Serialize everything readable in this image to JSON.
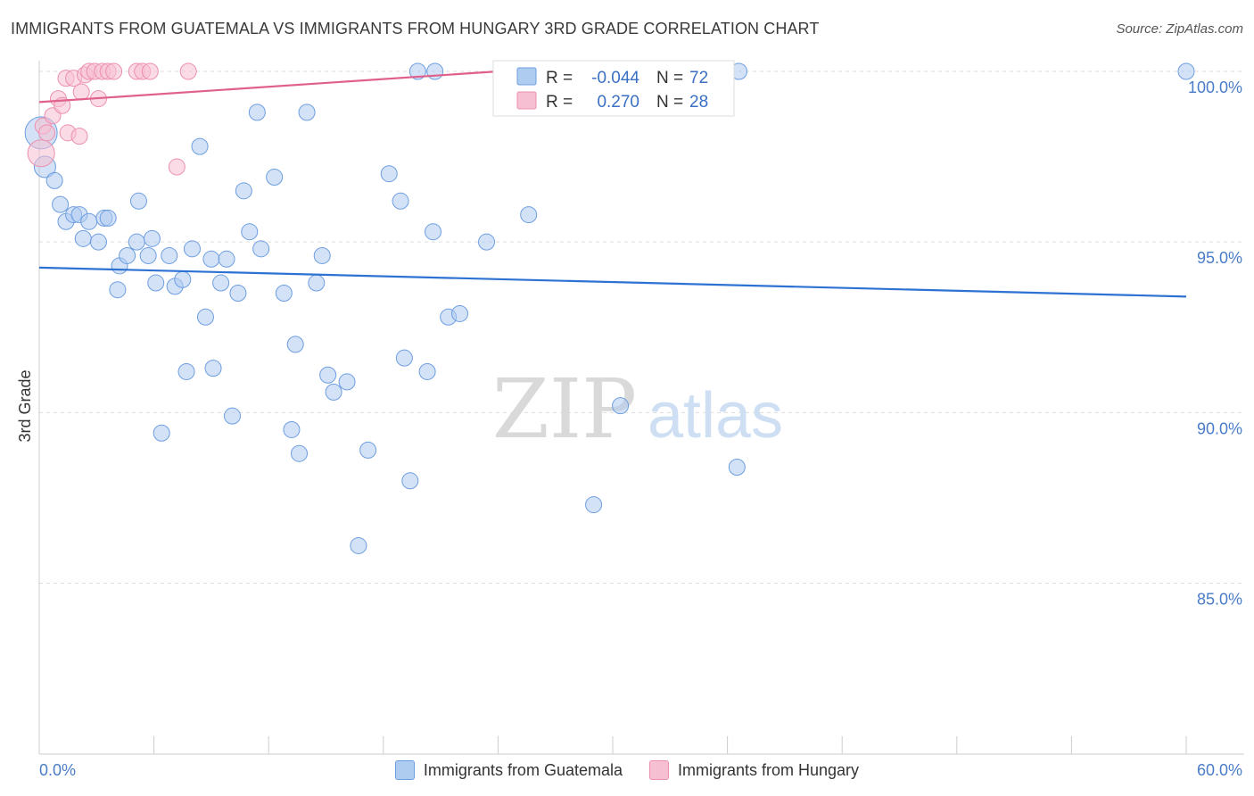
{
  "title": "IMMIGRANTS FROM GUATEMALA VS IMMIGRANTS FROM HUNGARY 3RD GRADE CORRELATION CHART",
  "source": "Source: ZipAtlas.com",
  "watermark": {
    "zip": "ZIP",
    "atlas": "atlas"
  },
  "colors": {
    "guatemala_fill": "#aecbf0",
    "guatemala_stroke": "#6d9ee0",
    "guatemala_line": "#2d72d2",
    "hungary_fill": "#f7c0d2",
    "hungary_stroke": "#ec8fae",
    "hungary_line": "#e0608c",
    "tick": "#4a7cc7",
    "grid": "#dddddd"
  },
  "legend": {
    "rows": [
      {
        "r_label": "R =",
        "r_value": "-0.044",
        "n_label": "N =",
        "n_value": "72"
      },
      {
        "r_label": "R =",
        "r_value": "0.270",
        "n_label": "N =",
        "n_value": "28"
      }
    ]
  },
  "chart_data": {
    "type": "scatter",
    "title": "IMMIGRANTS FROM GUATEMALA VS IMMIGRANTS FROM HUNGARY 3RD GRADE CORRELATION CHART",
    "xlabel": "",
    "ylabel": "3rd Grade",
    "xlim": [
      0,
      60
    ],
    "ylim": [
      80.5,
      100.5
    ],
    "x_tick_labels": [
      {
        "value": 0,
        "label": "0.0%"
      },
      {
        "value": 60,
        "label": "60.0%"
      }
    ],
    "y_tick_labels": [
      {
        "value": 100,
        "label": "100.0%"
      },
      {
        "value": 95,
        "label": "95.0%"
      },
      {
        "value": 90,
        "label": "90.0%"
      },
      {
        "value": 85,
        "label": "85.0%"
      }
    ],
    "x_minor_ticks": [
      6,
      12,
      18,
      24,
      30,
      36,
      42,
      48,
      54,
      60
    ],
    "grid": true,
    "legend_position": "top-center",
    "series": [
      {
        "name": "Immigrants from Guatemala",
        "r": -0.044,
        "n": 72,
        "trend": {
          "x": [
            0,
            60
          ],
          "y": [
            94.25,
            93.4
          ]
        },
        "points": [
          [
            0.1,
            98.2,
            18
          ],
          [
            0.3,
            97.2,
            12
          ],
          [
            0.8,
            96.8,
            9
          ],
          [
            1.1,
            96.1,
            9
          ],
          [
            1.4,
            95.6,
            9
          ],
          [
            1.8,
            95.8,
            9
          ],
          [
            2.1,
            95.8,
            9
          ],
          [
            2.3,
            95.1,
            9
          ],
          [
            2.6,
            95.6,
            9
          ],
          [
            3.1,
            95.0,
            9
          ],
          [
            3.4,
            95.7,
            9
          ],
          [
            3.6,
            95.7,
            9
          ],
          [
            4.2,
            94.3,
            9
          ],
          [
            4.6,
            94.6,
            9
          ],
          [
            4.1,
            93.6,
            9
          ],
          [
            5.1,
            95.0,
            9
          ],
          [
            5.2,
            96.2,
            9
          ],
          [
            5.7,
            94.6,
            9
          ],
          [
            5.9,
            95.1,
            9
          ],
          [
            6.1,
            93.8,
            9
          ],
          [
            6.8,
            94.6,
            9
          ],
          [
            7.1,
            93.7,
            9
          ],
          [
            7.5,
            93.9,
            9
          ],
          [
            8.0,
            94.8,
            9
          ],
          [
            8.4,
            97.8,
            9
          ],
          [
            8.7,
            92.8,
            9
          ],
          [
            9.0,
            94.5,
            9
          ],
          [
            9.5,
            93.8,
            9
          ],
          [
            9.8,
            94.5,
            9
          ],
          [
            10.4,
            93.5,
            9
          ],
          [
            10.7,
            96.5,
            9
          ],
          [
            11.0,
            95.3,
            9
          ],
          [
            11.6,
            94.8,
            9
          ],
          [
            11.4,
            98.8,
            9
          ],
          [
            12.3,
            96.9,
            9
          ],
          [
            12.8,
            93.5,
            9
          ],
          [
            13.4,
            92.0,
            9
          ],
          [
            14.0,
            98.8,
            9
          ],
          [
            14.5,
            93.8,
            9
          ],
          [
            14.8,
            94.6,
            9
          ],
          [
            15.1,
            91.1,
            9
          ],
          [
            15.4,
            90.6,
            9
          ],
          [
            16.1,
            90.9,
            9
          ],
          [
            7.7,
            91.2,
            9
          ],
          [
            9.1,
            91.3,
            9
          ],
          [
            10.1,
            89.9,
            9
          ],
          [
            6.4,
            89.4,
            9
          ],
          [
            13.2,
            89.5,
            9
          ],
          [
            13.6,
            88.8,
            9
          ],
          [
            17.2,
            88.9,
            9
          ],
          [
            16.7,
            86.1,
            9
          ],
          [
            18.3,
            97.0,
            9
          ],
          [
            18.9,
            96.2,
            9
          ],
          [
            19.1,
            91.6,
            9
          ],
          [
            19.8,
            100.0,
            9
          ],
          [
            20.3,
            91.2,
            9
          ],
          [
            20.7,
            100.0,
            9
          ],
          [
            20.6,
            95.3,
            9
          ],
          [
            21.4,
            92.8,
            9
          ],
          [
            22.0,
            92.9,
            9
          ],
          [
            23.4,
            95.0,
            9
          ],
          [
            25.6,
            95.8,
            9
          ],
          [
            19.4,
            88.0,
            9
          ],
          [
            29.0,
            87.3,
            9
          ],
          [
            30.4,
            90.2,
            9
          ],
          [
            36.5,
            88.4,
            9
          ],
          [
            33.8,
            100.0,
            9
          ],
          [
            36.6,
            100.0,
            9
          ],
          [
            60.0,
            100.0,
            9
          ],
          [
            11.2,
            96.5,
            0.1
          ],
          [
            6.2,
            94.6,
            0.1
          ],
          [
            4.2,
            94.4,
            0.1
          ]
        ]
      },
      {
        "name": "Immigrants from Hungary",
        "r": 0.27,
        "n": 28,
        "trend": {
          "x": [
            0,
            24
          ],
          "y": [
            99.1,
            100.0
          ]
        },
        "points": [
          [
            0.1,
            97.6,
            15
          ],
          [
            0.2,
            98.4,
            9
          ],
          [
            0.4,
            98.2,
            9
          ],
          [
            0.7,
            98.7,
            9
          ],
          [
            1.0,
            99.2,
            9
          ],
          [
            1.2,
            99.0,
            9
          ],
          [
            1.4,
            99.8,
            9
          ],
          [
            1.5,
            98.2,
            9
          ],
          [
            1.8,
            99.8,
            9
          ],
          [
            2.1,
            98.1,
            9
          ],
          [
            2.2,
            99.4,
            9
          ],
          [
            2.4,
            99.9,
            9
          ],
          [
            2.6,
            100.0,
            9
          ],
          [
            2.9,
            100.0,
            9
          ],
          [
            3.1,
            99.2,
            9
          ],
          [
            3.3,
            100.0,
            9
          ],
          [
            3.6,
            100.0,
            9
          ],
          [
            3.9,
            100.0,
            9
          ],
          [
            5.1,
            100.0,
            9
          ],
          [
            5.4,
            100.0,
            9
          ],
          [
            5.8,
            100.0,
            9
          ],
          [
            7.2,
            97.2,
            9
          ],
          [
            7.8,
            100.0,
            9
          ],
          [
            8.0,
            99.3,
            0.1
          ],
          [
            1.1,
            99.8,
            0.1
          ],
          [
            2.0,
            99.8,
            0.1
          ],
          [
            3.0,
            99.9,
            0.1
          ],
          [
            0.9,
            99.3,
            0.1
          ]
        ]
      }
    ]
  },
  "bottom_legend": [
    {
      "label": "Immigrants from Guatemala"
    },
    {
      "label": "Immigrants from Hungary"
    }
  ]
}
